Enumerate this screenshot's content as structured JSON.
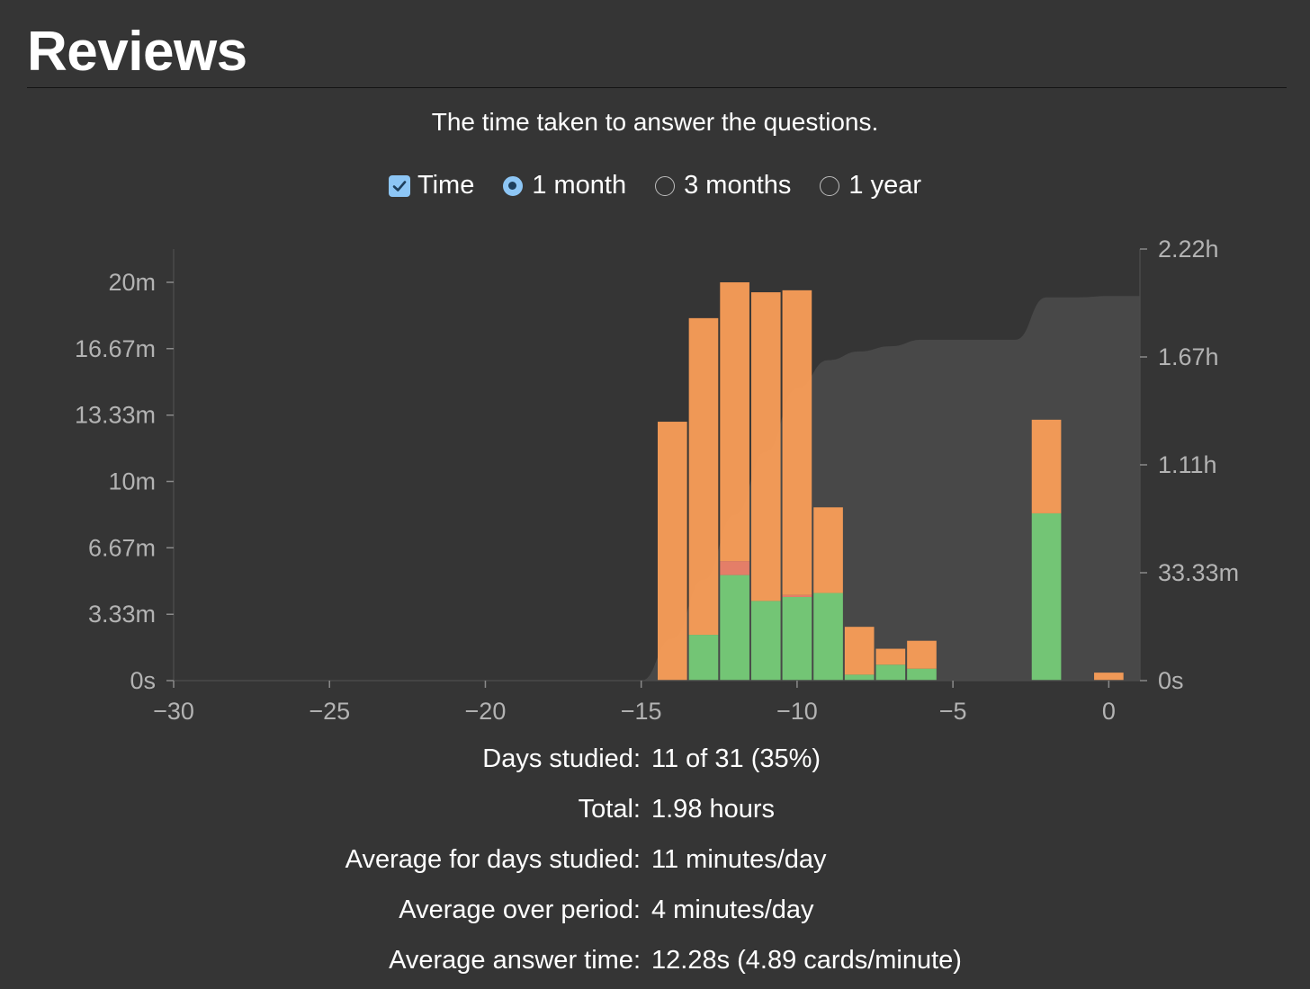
{
  "page": {
    "title": "Reviews",
    "subtitle": "The time taken to answer the questions."
  },
  "controls": {
    "time_label": "Time",
    "time_checked": true,
    "ranges": [
      {
        "label": "1 month",
        "selected": true
      },
      {
        "label": "3 months",
        "selected": false
      },
      {
        "label": "1 year",
        "selected": false
      }
    ]
  },
  "chart_data": {
    "type": "bar",
    "stacked": true,
    "x_ticks": [
      "−30",
      "−25",
      "−20",
      "−15",
      "−10",
      "−5",
      "0"
    ],
    "x_tick_values": [
      -30,
      -25,
      -20,
      -15,
      -10,
      -5,
      0
    ],
    "xlim": [
      -30,
      1
    ],
    "y_ticks_left": [
      "0s",
      "3.33m",
      "6.67m",
      "10m",
      "13.33m",
      "16.67m",
      "20m"
    ],
    "y_tick_values_left": [
      0,
      3.33,
      6.67,
      10,
      13.33,
      16.67,
      20
    ],
    "ylim_left": [
      0,
      21.67
    ],
    "y_ticks_right": [
      "0s",
      "33.33m",
      "1.11h",
      "1.67h",
      "2.22h"
    ],
    "y_tick_values_right": [
      0,
      33.33,
      66.67,
      100,
      133.33
    ],
    "ylim_right": [
      0,
      133.33
    ],
    "colors": {
      "mature": "#77d07a",
      "relearn": "#f2836b",
      "young": "#ffa159",
      "young_dark": "#ff9941",
      "cumulative": "#484848"
    },
    "bars": [
      {
        "day": -14,
        "mature": 0,
        "relearn": 0,
        "young": 13.0
      },
      {
        "day": -13,
        "mature": 2.3,
        "relearn": 0,
        "young": 15.9
      },
      {
        "day": -12,
        "mature": 5.3,
        "relearn": 0.7,
        "young": 14.0
      },
      {
        "day": -11,
        "mature": 4.0,
        "relearn": 0,
        "young": 15.5
      },
      {
        "day": -10,
        "mature": 4.2,
        "relearn": 0.1,
        "young": 15.3
      },
      {
        "day": -9,
        "mature": 4.4,
        "relearn": 0,
        "young": 4.3
      },
      {
        "day": -8,
        "mature": 0.3,
        "relearn": 0,
        "young": 2.4
      },
      {
        "day": -7,
        "mature": 0.8,
        "relearn": 0,
        "young": 0.8
      },
      {
        "day": -6,
        "mature": 0.6,
        "relearn": 0,
        "young": 1.4
      },
      {
        "day": -2,
        "mature": 8.4,
        "relearn": 0,
        "young": 4.7
      },
      {
        "day": 0,
        "mature": 0,
        "relearn": 0,
        "young": 0.4
      }
    ],
    "cumulative_minutes": [
      {
        "day": -15,
        "value": 0
      },
      {
        "day": -14,
        "value": 13.0
      },
      {
        "day": -13,
        "value": 31.2
      },
      {
        "day": -12,
        "value": 51.2
      },
      {
        "day": -11,
        "value": 70.7
      },
      {
        "day": -10,
        "value": 90.3
      },
      {
        "day": -9,
        "value": 99.0
      },
      {
        "day": -8,
        "value": 101.7
      },
      {
        "day": -7,
        "value": 103.3
      },
      {
        "day": -6,
        "value": 105.3
      },
      {
        "day": -5,
        "value": 105.3
      },
      {
        "day": -4,
        "value": 105.3
      },
      {
        "day": -3,
        "value": 105.3
      },
      {
        "day": -2,
        "value": 118.4
      },
      {
        "day": -1,
        "value": 118.4
      },
      {
        "day": 0,
        "value": 118.8
      },
      {
        "day": 1,
        "value": 118.8
      }
    ]
  },
  "stats": [
    {
      "label": "Days studied:",
      "value": "11 of 31 (35%)"
    },
    {
      "label": "Total:",
      "value": "1.98 hours"
    },
    {
      "label": "Average for days studied:",
      "value": "11 minutes/day"
    },
    {
      "label": "Average over period:",
      "value": "4 minutes/day"
    },
    {
      "label": "Average answer time:",
      "value": "12.28s (4.89 cards/minute)"
    }
  ]
}
